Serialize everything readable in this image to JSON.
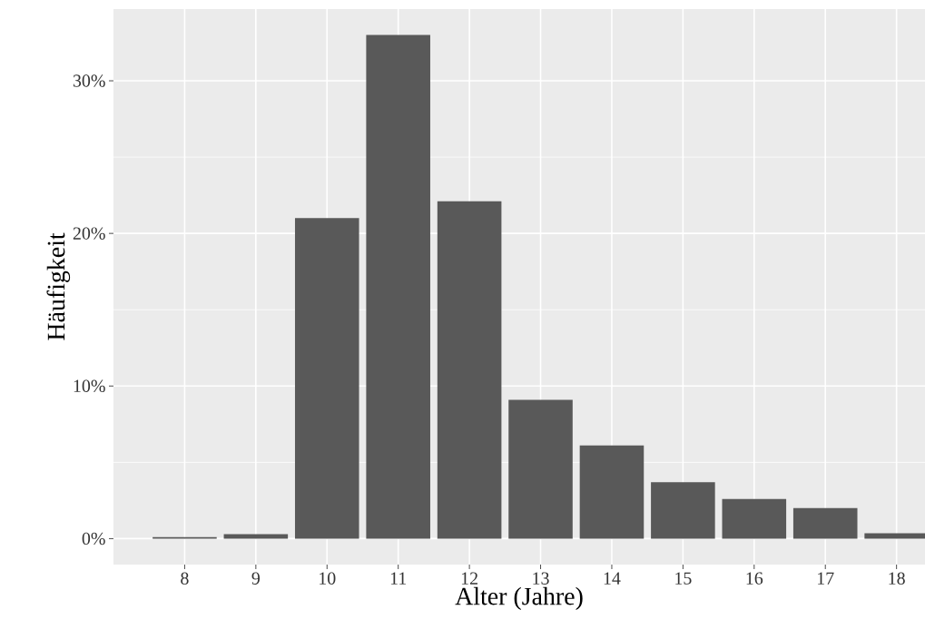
{
  "chart_data": {
    "type": "bar",
    "xlabel": "Alter (Jahre)",
    "ylabel": "Häufigkeit",
    "categories": [
      "8",
      "9",
      "10",
      "11",
      "12",
      "13",
      "14",
      "15",
      "16",
      "17",
      "18"
    ],
    "values": [
      0.1,
      0.3,
      21.0,
      33.0,
      22.1,
      9.1,
      6.1,
      3.7,
      2.6,
      2.0,
      0.35
    ],
    "color": "#595959",
    "ylim": [
      -1.7,
      34.7
    ],
    "yticks": [
      {
        "value": 0,
        "label": "0%"
      },
      {
        "value": 10,
        "label": "10%"
      },
      {
        "value": 20,
        "label": "20%"
      },
      {
        "value": 30,
        "label": "30%"
      }
    ],
    "grid": true
  }
}
